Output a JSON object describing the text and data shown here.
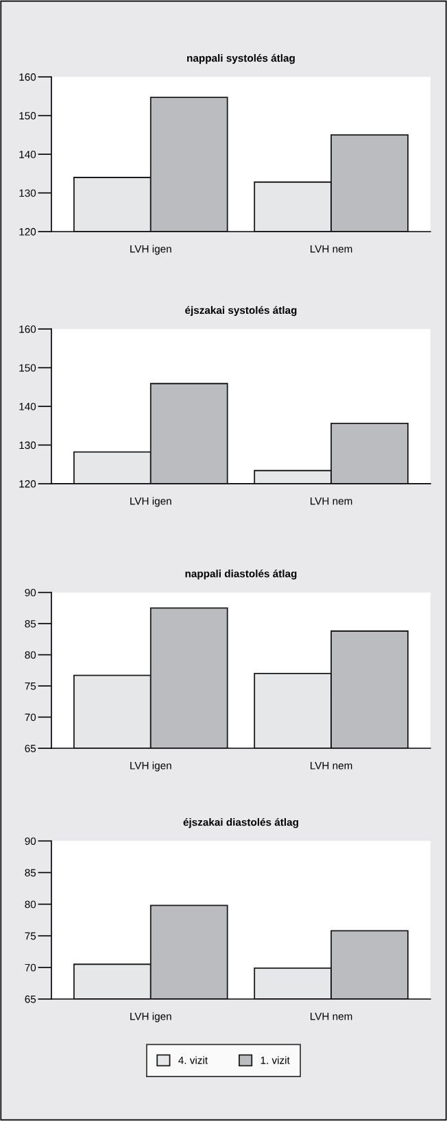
{
  "chart_data": [
    {
      "type": "bar",
      "title": "nappali systolés átlag",
      "categories": [
        "LVH igen",
        "LVH nem"
      ],
      "ylim": [
        120,
        160
      ],
      "yticks": [
        120,
        130,
        140,
        150,
        160
      ],
      "grid": false,
      "series": [
        {
          "color": "#e6e7e9",
          "values": [
            134,
            132.8
          ]
        },
        {
          "color": "#bbbcc0",
          "values": [
            154.7,
            145
          ]
        }
      ]
    },
    {
      "type": "bar",
      "title": "éjszakai systolés átlag",
      "categories": [
        "LVH igen",
        "LVH nem"
      ],
      "ylim": [
        120,
        160
      ],
      "yticks": [
        120,
        130,
        140,
        150,
        160
      ],
      "grid": false,
      "series": [
        {
          "color": "#e6e7e9",
          "values": [
            128.2,
            123.4
          ]
        },
        {
          "color": "#bbbcc0",
          "values": [
            145.9,
            135.6
          ]
        }
      ]
    },
    {
      "type": "bar",
      "title": "nappali diastolés átlag",
      "categories": [
        "LVH igen",
        "LVH nem"
      ],
      "ylim": [
        65,
        90
      ],
      "yticks": [
        65,
        70,
        75,
        80,
        85,
        90
      ],
      "grid": false,
      "series": [
        {
          "color": "#e6e7e9",
          "values": [
            76.7,
            77.0
          ]
        },
        {
          "color": "#bbbcc0",
          "values": [
            87.5,
            83.8
          ]
        }
      ]
    },
    {
      "type": "bar",
      "title": "éjszakai diastolés átlag",
      "categories": [
        "LVH igen",
        "LVH nem"
      ],
      "ylim": [
        65,
        90
      ],
      "yticks": [
        65,
        70,
        75,
        80,
        85,
        90
      ],
      "grid": false,
      "legend": "bottom",
      "series": [
        {
          "name": "4. vizit",
          "color": "#e6e7e9",
          "values": [
            70.5,
            69.9
          ]
        },
        {
          "name": "1. vizit",
          "color": "#bbbcc0",
          "values": [
            79.8,
            75.8
          ]
        }
      ]
    }
  ]
}
